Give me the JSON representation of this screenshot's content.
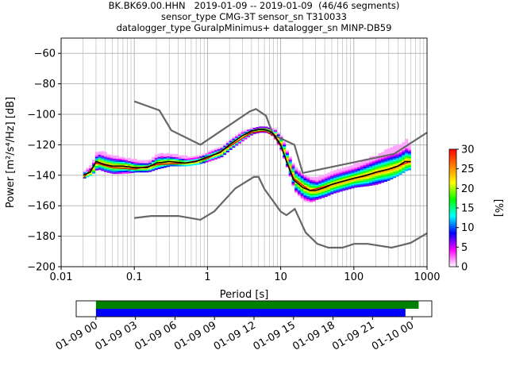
{
  "title": {
    "line1": "BK.BK69.00.HHN   2019-01-09 -- 2019-01-09  (46/46 segments)",
    "line2": "sensor_type CMG-3T sensor_sn T310033",
    "line3": "datalogger_type GuralpMinimus+ datalogger_sn MINP-DB59"
  },
  "chart_data": [
    {
      "type": "heatmap",
      "title": "BK.BK69.00.HHN   2019-01-09 -- 2019-01-09  (46/46 segments)",
      "xlabel": "Period [s]",
      "ylabel": "Power [m²/s⁴/Hz] [dB]",
      "xscale": "log",
      "xlim": [
        0.01,
        1000
      ],
      "ylim": [
        -200,
        -50
      ],
      "x_ticks": [
        "0.01",
        "0.1",
        "1",
        "10",
        "100",
        "1000"
      ],
      "y_ticks": [
        "−200",
        "−180",
        "−160",
        "−140",
        "−120",
        "−100",
        "−80",
        "−60"
      ],
      "grid": true,
      "colorbar": {
        "label": "[%]",
        "range": [
          0,
          30
        ],
        "ticks": [
          "0",
          "5",
          "10",
          "15",
          "20",
          "25",
          "30"
        ],
        "colormap": [
          "#ffffff",
          "#ff00ff",
          "#0000ff",
          "#00ffff",
          "#00ff00",
          "#ffff00",
          "#ff8000",
          "#ff0000"
        ]
      },
      "series": [
        {
          "role": "median",
          "color": "#000000",
          "x": [
            0.02,
            0.025,
            0.03,
            0.04,
            0.05,
            0.07,
            0.1,
            0.15,
            0.2,
            0.3,
            0.5,
            0.7,
            1.0,
            1.5,
            2.0,
            3.0,
            4.0,
            5.0,
            6.0,
            7.0,
            8.0,
            10.0,
            12.0,
            15.0,
            20.0,
            25.0,
            30.0,
            40.0,
            50.0,
            70.0,
            100.0,
            150.0,
            200.0,
            300.0,
            400.0,
            500.0,
            600.0
          ],
          "y": [
            -140,
            -138,
            -131,
            -133,
            -134,
            -134,
            -135,
            -135,
            -132,
            -131,
            -132,
            -131,
            -128,
            -125,
            -120,
            -114,
            -111,
            -110,
            -110,
            -111,
            -113,
            -120,
            -131,
            -143,
            -148,
            -150,
            -150,
            -148,
            -146,
            -144,
            -142,
            -140,
            -138,
            -136,
            -134,
            -131,
            -131
          ]
        },
        {
          "role": "mode",
          "color": "#dd0000",
          "x": [
            0.02,
            0.03,
            0.05,
            0.1,
            0.2,
            0.5,
            1.0,
            2.0,
            4.0,
            6.0,
            8.0,
            10.0,
            15.0,
            25.0,
            50.0,
            100.0,
            300.0,
            600.0
          ],
          "y": [
            -142,
            -132,
            -135,
            -136,
            -133,
            -132,
            -129,
            -121,
            -112,
            -111,
            -114,
            -121,
            -142,
            -150,
            -146,
            -142,
            -136,
            -131
          ]
        }
      ],
      "noise_models": [
        {
          "name": "NHNM",
          "color": "#666666",
          "x": [
            0.1,
            0.22,
            0.32,
            0.8,
            3.8,
            4.6,
            6.3,
            7.9,
            15.4,
            20,
            354.8,
            1000
          ],
          "y": [
            -91.5,
            -97.4,
            -110.5,
            -120,
            -98,
            -96.5,
            -101,
            -113.5,
            -120,
            -138.5,
            -126,
            -112
          ]
        },
        {
          "name": "NLNM",
          "color": "#666666",
          "x": [
            0.1,
            0.17,
            0.4,
            0.8,
            1.24,
            2.4,
            4.3,
            5.0,
            6.0,
            10,
            12,
            15.6,
            21.9,
            31.6,
            45,
            70,
            101,
            154,
            328,
            600,
            1000
          ],
          "y": [
            -168,
            -166.7,
            -166.7,
            -169.2,
            -163.7,
            -148.6,
            -141.1,
            -141.1,
            -149,
            -163.8,
            -166.2,
            -162.1,
            -177.5,
            -185,
            -187.5,
            -187.5,
            -185,
            -185,
            -187.5,
            -184.4,
            -178
          ]
        }
      ],
      "cloud": {
        "x": [
          0.02,
          0.025,
          0.03,
          0.04,
          0.05,
          0.07,
          0.1,
          0.15,
          0.2,
          0.3,
          0.5,
          0.7,
          1.0,
          1.5,
          2.0,
          3.0,
          4.0,
          5.0,
          6.0,
          7.0,
          8.0,
          10.0,
          12.0,
          15.0,
          20.0,
          25.0,
          30.0,
          40.0,
          50.0,
          70.0,
          100.0,
          150.0,
          200.0,
          300.0,
          400.0,
          500.0,
          600.0
        ],
        "y_high": [
          -137,
          -133,
          -124,
          -126,
          -127,
          -129,
          -130,
          -131,
          -126,
          -126,
          -128,
          -127,
          -125,
          -121,
          -116,
          -111,
          -109,
          -108,
          -108,
          -109,
          -110,
          -115,
          -125,
          -135,
          -140,
          -142,
          -142,
          -139,
          -137,
          -135,
          -133,
          -129,
          -127,
          -122,
          -120,
          -117,
          -121
        ],
        "y_low": [
          -142,
          -140,
          -136,
          -138,
          -139,
          -139,
          -138,
          -138,
          -136,
          -134,
          -134,
          -133,
          -131,
          -128,
          -123,
          -117,
          -113,
          -112,
          -112,
          -113,
          -116,
          -125,
          -136,
          -151,
          -157,
          -158,
          -156,
          -154,
          -152,
          -150,
          -148,
          -147,
          -146,
          -143,
          -140,
          -137,
          -136
        ]
      }
    },
    {
      "type": "timeline",
      "x_ticks": [
        "01-09 00",
        "01-09 03",
        "01-09 06",
        "01-09 09",
        "01-09 12",
        "01-09 15",
        "01-09 18",
        "01-09 21",
        "01-10 00"
      ],
      "xlim_hours": [
        -1.5,
        25.5
      ],
      "bars": [
        {
          "name": "data",
          "color": "#008000",
          "start_hour": 0,
          "end_hour": 24.5
        },
        {
          "name": "psd",
          "color": "#0000ff",
          "start_hour": 0,
          "end_hour": 23.5
        }
      ]
    }
  ]
}
